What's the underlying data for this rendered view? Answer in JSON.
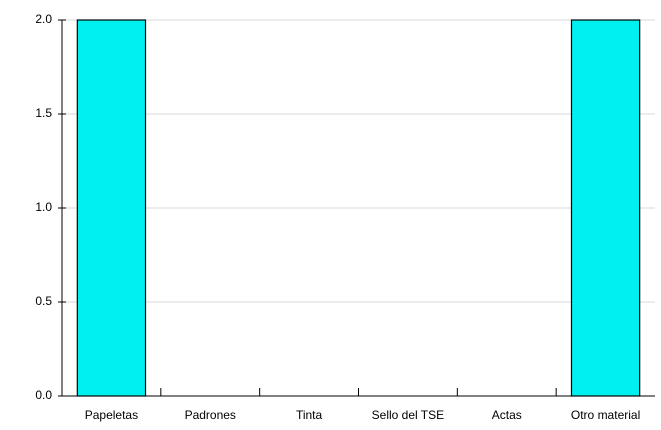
{
  "chart_data": {
    "type": "bar",
    "categories": [
      "Papeletas",
      "Padrones",
      "Tinta",
      "Sello del TSE",
      "Actas",
      "Otro material"
    ],
    "values": [
      2,
      0,
      0,
      0,
      0,
      2
    ],
    "color": "#00f0f0",
    "ylim": [
      0,
      2
    ],
    "yticks": [
      {
        "value": 0,
        "label": "0.0"
      },
      0.5,
      {
        "value": 1,
        "label": "1.0"
      },
      1.5,
      {
        "value": 2,
        "label": "2.0"
      }
    ],
    "grid": true
  }
}
